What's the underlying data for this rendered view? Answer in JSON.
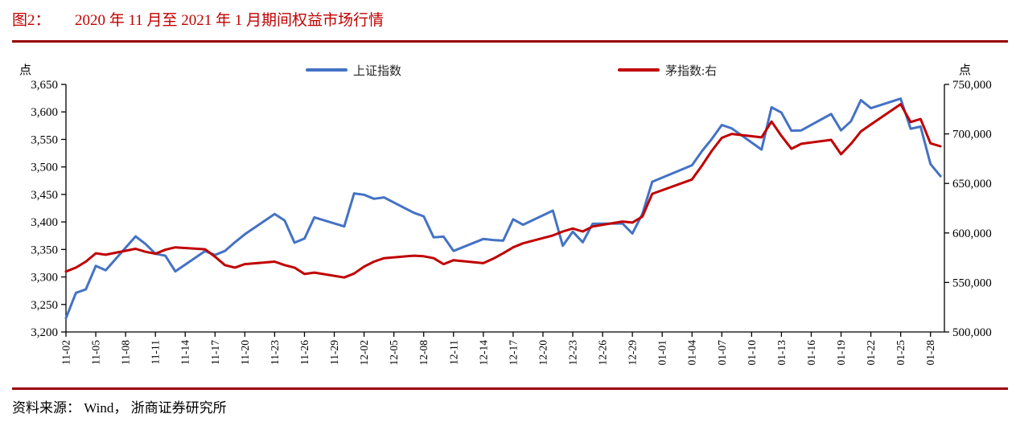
{
  "header": {
    "figure_label": "图2：",
    "title": "2020 年 11 月至 2021 年 1 月期间权益市场行情"
  },
  "footer": {
    "source": "资料来源： Wind， 浙商证券研究所"
  },
  "colors": {
    "accent_red": "#C00000",
    "rule_red": "#990000",
    "series_blue": "#4472C4",
    "series_red": "#C00000"
  },
  "legend": {
    "items": [
      {
        "label": "上证指数",
        "color": "#4472C4"
      },
      {
        "label": "茅指数:右",
        "color": "#C00000"
      }
    ]
  },
  "chart_data": {
    "type": "line",
    "title": "2020 年 11 月至 2021 年 1 月期间权益市场行情",
    "grid": false,
    "legend_position": "top",
    "left_axis": {
      "unit": "点",
      "min": 3200,
      "max": 3650,
      "step": 50,
      "ticks": [
        "3,650",
        "3,600",
        "3,550",
        "3,500",
        "3,450",
        "3,400",
        "3,350",
        "3,300",
        "3,250",
        "3,200"
      ]
    },
    "right_axis": {
      "unit": "点",
      "min": 500000,
      "max": 750000,
      "step": 50000,
      "ticks": [
        "750,000",
        "700,000",
        "650,000",
        "600,000",
        "550,000",
        "500,000"
      ]
    },
    "x_tick_labels": [
      "11-02",
      "11-05",
      "11-08",
      "11-11",
      "11-14",
      "11-17",
      "11-20",
      "11-23",
      "11-26",
      "11-29",
      "12-02",
      "12-05",
      "12-08",
      "12-11",
      "12-14",
      "12-17",
      "12-20",
      "12-23",
      "12-26",
      "12-29",
      "01-01",
      "01-04",
      "01-07",
      "01-10",
      "01-13",
      "01-16",
      "01-19",
      "01-22",
      "01-25",
      "01-28"
    ],
    "dates": [
      "11-02",
      "11-03",
      "11-04",
      "11-05",
      "11-06",
      "11-09",
      "11-10",
      "11-11",
      "11-12",
      "11-13",
      "11-16",
      "11-17",
      "11-18",
      "11-19",
      "11-20",
      "11-23",
      "11-24",
      "11-25",
      "11-26",
      "11-27",
      "11-30",
      "12-01",
      "12-02",
      "12-03",
      "12-04",
      "12-07",
      "12-08",
      "12-09",
      "12-10",
      "12-11",
      "12-14",
      "12-15",
      "12-16",
      "12-17",
      "12-18",
      "12-21",
      "12-22",
      "12-23",
      "12-24",
      "12-25",
      "12-28",
      "12-29",
      "12-30",
      "12-31",
      "01-04",
      "01-05",
      "01-06",
      "01-07",
      "01-08",
      "01-11",
      "01-12",
      "01-13",
      "01-14",
      "01-15",
      "01-18",
      "01-19",
      "01-20",
      "01-21",
      "01-22",
      "01-25",
      "01-26",
      "01-27",
      "01-28",
      "01-29"
    ],
    "series": [
      {
        "name": "上证指数",
        "axis": "left",
        "color": "#4472C4",
        "values": [
          3225.1,
          3271.1,
          3277.4,
          3320.1,
          3312.2,
          3373.7,
          3360.2,
          3342.2,
          3338.7,
          3310.1,
          3347.0,
          3339.9,
          3347.3,
          3363.1,
          3377.7,
          3414.5,
          3402.8,
          3362.3,
          3369.7,
          3408.3,
          3391.8,
          3451.9,
          3449.4,
          3442.1,
          3444.6,
          3416.6,
          3410.2,
          3372.0,
          3373.3,
          3347.2,
          3369.1,
          3367.2,
          3366.0,
          3404.9,
          3394.9,
          3420.6,
          3356.8,
          3382.3,
          3363.1,
          3396.6,
          3397.3,
          3379.0,
          3414.5,
          3473.1,
          3503.0,
          3528.7,
          3550.9,
          3576.2,
          3570.1,
          3531.5,
          3608.3,
          3598.7,
          3565.9,
          3566.4,
          3596.2,
          3566.4,
          3583.1,
          3621.3,
          3606.8,
          3624.2,
          3569.4,
          3573.3,
          3505.2,
          3483.1
        ]
      },
      {
        "name": "茅指数:右",
        "axis": "right",
        "color": "#C00000",
        "values": [
          561000,
          565000,
          571000,
          579500,
          578000,
          584000,
          581000,
          579000,
          583000,
          585500,
          583500,
          576000,
          567500,
          565000,
          568500,
          571000,
          567500,
          565000,
          558500,
          560000,
          555000,
          559000,
          566000,
          571000,
          574500,
          577000,
          576500,
          574500,
          568500,
          572500,
          569500,
          574000,
          579500,
          585500,
          589500,
          597500,
          601500,
          604500,
          601500,
          606500,
          611500,
          610500,
          616500,
          639500,
          654000,
          668000,
          683000,
          696000,
          700000,
          696500,
          712500,
          698000,
          685000,
          690000,
          694000,
          679500,
          690000,
          702500,
          709500,
          730000,
          712000,
          715000,
          690500,
          687500
        ]
      }
    ]
  }
}
